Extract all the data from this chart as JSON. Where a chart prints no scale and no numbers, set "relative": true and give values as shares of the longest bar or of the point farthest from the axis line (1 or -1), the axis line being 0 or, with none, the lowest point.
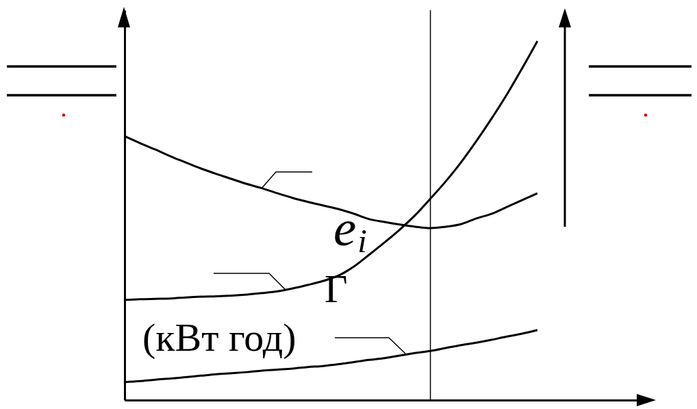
{
  "chart_data": {
    "type": "line",
    "relative": true,
    "categories": [
      null,
      null,
      null,
      null,
      null,
      null,
      null,
      null,
      null,
      null,
      null,
      null,
      null,
      null,
      null,
      null,
      null,
      null,
      null,
      null,
      null,
      null,
      null,
      null,
      null,
      null,
      null,
      null,
      null,
      null,
      null,
      null,
      null,
      null,
      null
    ],
    "series": [
      {
        "color": "#000000",
        "values": [
          0.735,
          0.716,
          0.698,
          0.679,
          0.662,
          0.645,
          0.63,
          0.616,
          0.602,
          0.59,
          0.576,
          0.563,
          0.552,
          0.542,
          0.532,
          0.519,
          0.504,
          0.496,
          0.489,
          0.483,
          0.479,
          0.483,
          0.49,
          0.506,
          0.519,
          0.538,
          0.557,
          0.576,
          null,
          null,
          null,
          null,
          null,
          null,
          null
        ]
      },
      {
        "color": "#000000",
        "values": [
          0.279,
          0.281,
          0.282,
          0.283,
          0.286,
          0.288,
          0.289,
          0.291,
          0.294,
          0.298,
          0.303,
          0.311,
          0.321,
          0.332,
          0.347,
          0.372,
          0.405,
          0.439,
          0.475,
          0.515,
          0.561,
          0.609,
          0.662,
          0.721,
          0.784,
          0.851,
          0.924,
          1,
          null,
          null,
          null,
          null,
          null,
          null,
          null
        ]
      },
      {
        "color": "#000000",
        "values": [
          0.05,
          0.053,
          0.057,
          0.06,
          0.064,
          0.068,
          0.072,
          0.075,
          0.078,
          0.082,
          0.085,
          0.088,
          0.092,
          0.095,
          0.1,
          0.106,
          0.112,
          0.117,
          0.124,
          0.131,
          0.137,
          0.145,
          0.153,
          0.16,
          0.168,
          0.177,
          0.185,
          0.195,
          null,
          null,
          null,
          null,
          null,
          null,
          null
        ]
      }
    ],
    "annotations": [
      "e$_{i}$",
      "Г",
      "(кВт год)"
    ]
  }
}
